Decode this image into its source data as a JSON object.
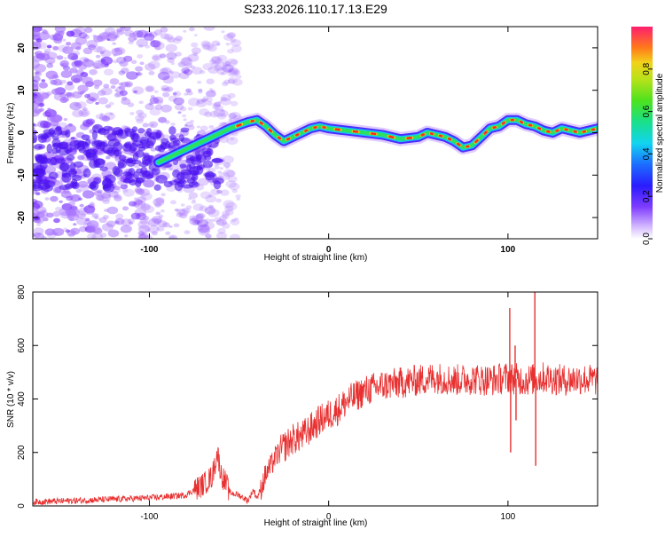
{
  "title": "S233.2026.110.17.13.E29",
  "chart_data": [
    {
      "type": "heatmap",
      "title": "S233.2026.110.17.13.E29",
      "xlabel": "Height of straight line (km)",
      "ylabel": "Frequency (Hz)",
      "xlim": [
        -165,
        150
      ],
      "ylim": [
        -25,
        25
      ],
      "xticks": [
        -100,
        0,
        100
      ],
      "yticks": [
        -20,
        -10,
        0,
        10,
        20
      ],
      "ridge": {
        "x": [
          -95,
          -85,
          -75,
          -65,
          -55,
          -45,
          -40,
          -35,
          -30,
          -25,
          -20,
          -15,
          -10,
          -5,
          0,
          10,
          20,
          30,
          40,
          50,
          55,
          60,
          65,
          70,
          75,
          80,
          85,
          90,
          95,
          100,
          105,
          110,
          115,
          120,
          125,
          130,
          135,
          140,
          145,
          150
        ],
        "freq": [
          -7,
          -5,
          -3,
          -1,
          1,
          2.5,
          3,
          1.5,
          -0.5,
          -2,
          -1,
          0,
          1,
          1.5,
          1,
          0.5,
          0,
          -0.5,
          -1.5,
          -1,
          0,
          -0.5,
          -1,
          -2,
          -3.5,
          -3,
          -1,
          1,
          1.5,
          3,
          3,
          2,
          1.5,
          0.5,
          0,
          1,
          0.5,
          0,
          0.5,
          1
        ]
      },
      "colorbar": {
        "label": "Normalized spectral amplitude",
        "range": [
          0,
          1
        ],
        "ticks": [
          "0.0",
          "0.2",
          "0.4",
          "0.6",
          "0.8"
        ]
      }
    },
    {
      "type": "line",
      "xlabel": "Height of straight line (km)",
      "ylabel": "SNR (10 * v/v)",
      "xlim": [
        -165,
        150
      ],
      "ylim": [
        0,
        800
      ],
      "xticks": [
        -100,
        0,
        100
      ],
      "yticks": [
        0,
        200,
        400,
        600,
        800
      ],
      "series": [
        {
          "name": "SNR",
          "color": "#e83030",
          "x": [
            -165,
            -140,
            -120,
            -100,
            -90,
            -80,
            -75,
            -70,
            -65,
            -62,
            -60,
            -57,
            -55,
            -50,
            -45,
            -42,
            -40,
            -38,
            -35,
            -32,
            -30,
            -25,
            -20,
            -15,
            -10,
            -5,
            0,
            5,
            10,
            15,
            20,
            30,
            40,
            50,
            60,
            70,
            80,
            90,
            100,
            110,
            120,
            130,
            140,
            150
          ],
          "values": [
            15,
            20,
            25,
            30,
            35,
            40,
            60,
            80,
            110,
            200,
            120,
            80,
            50,
            40,
            20,
            60,
            30,
            60,
            120,
            150,
            180,
            220,
            250,
            260,
            290,
            320,
            340,
            360,
            390,
            410,
            430,
            450,
            460,
            470,
            480,
            470,
            475,
            470,
            480,
            470,
            480,
            470,
            475,
            470
          ]
        }
      ],
      "spikes": [
        {
          "x": 101,
          "values": [
            740,
            200
          ]
        },
        {
          "x": 104,
          "values": [
            600,
            320
          ]
        },
        {
          "x": 115,
          "values": [
            800,
            150
          ]
        }
      ]
    }
  ]
}
